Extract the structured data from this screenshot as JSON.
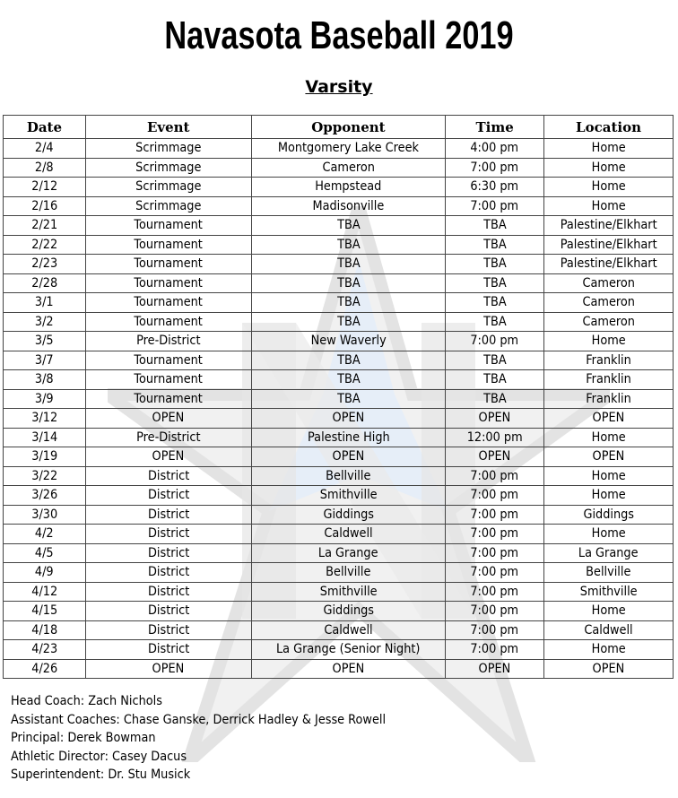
{
  "title": "Navasota Baseball 2019",
  "subtitle": "Varsity",
  "watermark_colors": {
    "gray": "#d9d9d9",
    "blue": "#d6e6f7"
  },
  "table": {
    "headers": [
      "Date",
      "Event",
      "Opponent",
      "Time",
      "Location"
    ],
    "rows": [
      [
        "2/4",
        "Scrimmage",
        "Montgomery Lake Creek",
        "4:00 pm",
        "Home"
      ],
      [
        "2/8",
        "Scrimmage",
        "Cameron",
        "7:00 pm",
        "Home"
      ],
      [
        "2/12",
        "Scrimmage",
        "Hempstead",
        "6:30 pm",
        "Home"
      ],
      [
        "2/16",
        "Scrimmage",
        "Madisonville",
        "7:00 pm",
        "Home"
      ],
      [
        "2/21",
        "Tournament",
        "TBA",
        "TBA",
        "Palestine/Elkhart"
      ],
      [
        "2/22",
        "Tournament",
        "TBA",
        "TBA",
        "Palestine/Elkhart"
      ],
      [
        "2/23",
        "Tournament",
        "TBA",
        "TBA",
        "Palestine/Elkhart"
      ],
      [
        "2/28",
        "Tournament",
        "TBA",
        "TBA",
        "Cameron"
      ],
      [
        "3/1",
        "Tournament",
        "TBA",
        "TBA",
        "Cameron"
      ],
      [
        "3/2",
        "Tournament",
        "TBA",
        "TBA",
        "Cameron"
      ],
      [
        "3/5",
        "Pre-District",
        "New Waverly",
        "7:00 pm",
        "Home"
      ],
      [
        "3/7",
        "Tournament",
        "TBA",
        "TBA",
        "Franklin"
      ],
      [
        "3/8",
        "Tournament",
        "TBA",
        "TBA",
        "Franklin"
      ],
      [
        "3/9",
        "Tournament",
        "TBA",
        "TBA",
        "Franklin"
      ],
      [
        "3/12",
        "OPEN",
        "OPEN",
        "OPEN",
        "OPEN"
      ],
      [
        "3/14",
        "Pre-District",
        "Palestine High",
        "12:00 pm",
        "Home"
      ],
      [
        "3/19",
        "OPEN",
        "OPEN",
        "OPEN",
        "OPEN"
      ],
      [
        "3/22",
        "District",
        "Bellville",
        "7:00 pm",
        "Home"
      ],
      [
        "3/26",
        "District",
        "Smithville",
        "7:00 pm",
        "Home"
      ],
      [
        "3/30",
        "District",
        "Giddings",
        "7:00 pm",
        "Giddings"
      ],
      [
        "4/2",
        "District",
        "Caldwell",
        "7:00 pm",
        "Home"
      ],
      [
        "4/5",
        "District",
        "La Grange",
        "7:00 pm",
        "La Grange"
      ],
      [
        "4/9",
        "District",
        "Bellville",
        "7:00 pm",
        "Bellville"
      ],
      [
        "4/12",
        "District",
        "Smithville",
        "7:00 pm",
        "Smithville"
      ],
      [
        "4/15",
        "District",
        "Giddings",
        "7:00 pm",
        "Home"
      ],
      [
        "4/18",
        "District",
        "Caldwell",
        "7:00 pm",
        "Caldwell"
      ],
      [
        "4/23",
        "District",
        "La Grange (Senior Night)",
        "7:00 pm",
        "Home"
      ],
      [
        "4/26",
        "OPEN",
        "OPEN",
        "OPEN",
        "OPEN"
      ]
    ]
  },
  "footer": [
    "Head Coach: Zach Nichols",
    "Assistant Coaches: Chase Ganske, Derrick Hadley & Jesse Rowell",
    "Principal: Derek Bowman",
    "Athletic Director: Casey Dacus",
    "Superintendent: Dr. Stu Musick"
  ]
}
